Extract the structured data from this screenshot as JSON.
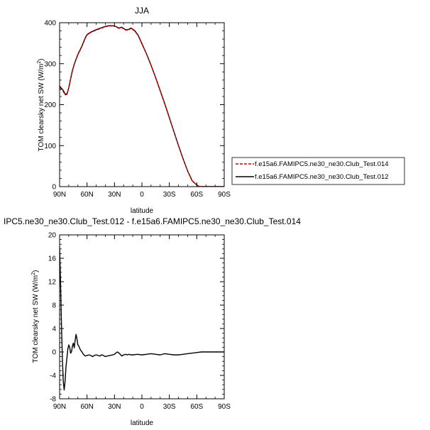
{
  "chart_data": [
    {
      "type": "line",
      "title": "JJA",
      "xlabel": "latitude",
      "ylabel": "TOM clearsky net SW (W/m",
      "ylabel_sup": "2",
      "ylabel_close": ")",
      "xlim": [
        90,
        -90
      ],
      "ylim": [
        0,
        400
      ],
      "xticks": [
        90,
        60,
        30,
        0,
        -30,
        -60,
        -90
      ],
      "xtick_labels": [
        "90N",
        "60N",
        "30N",
        "0",
        "30S",
        "60S",
        "90S"
      ],
      "yticks": [
        0,
        100,
        200,
        300,
        400
      ],
      "ytick_labels": [
        "0",
        "100",
        "200",
        "300",
        "400"
      ],
      "grid": false,
      "legend": "right",
      "series": [
        {
          "name": "f.e15a6.FAMIPC5.ne30_ne30.Club_Test.014",
          "color": "#cc0000",
          "dash": "dashed",
          "x": [
            90,
            88,
            86,
            84,
            82,
            80,
            78,
            76,
            74,
            72,
            70,
            66,
            62,
            60,
            56,
            50,
            45,
            40,
            35,
            30,
            25,
            22,
            18,
            15,
            12,
            8,
            4,
            0,
            -5,
            -10,
            -15,
            -20,
            -25,
            -30,
            -35,
            -40,
            -45,
            -50,
            -55,
            -60,
            -62,
            -64,
            -66,
            -68,
            -70,
            -75,
            -80,
            -85,
            -90
          ],
          "y": [
            236,
            238,
            232,
            224,
            225,
            240,
            262,
            282,
            298,
            310,
            322,
            340,
            362,
            370,
            376,
            382,
            386,
            390,
            392,
            392,
            386,
            388,
            382,
            382,
            386,
            380,
            368,
            348,
            324,
            296,
            266,
            234,
            202,
            168,
            134,
            100,
            68,
            38,
            14,
            4,
            1,
            0,
            0,
            0,
            0,
            0,
            0,
            0,
            0
          ]
        },
        {
          "name": "f.e15a6.FAMIPC5.ne30_ne30.Club_Test.012",
          "color": "#000000",
          "dash": "solid",
          "x": [
            90,
            88,
            86,
            84,
            82,
            80,
            78,
            76,
            74,
            72,
            70,
            66,
            62,
            60,
            56,
            50,
            45,
            40,
            35,
            30,
            25,
            22,
            18,
            15,
            12,
            8,
            4,
            0,
            -5,
            -10,
            -15,
            -20,
            -25,
            -30,
            -35,
            -40,
            -45,
            -50,
            -55,
            -60,
            -62,
            -64,
            -66,
            -68,
            -70,
            -75,
            -80,
            -85,
            -90
          ],
          "y": [
            245,
            240,
            235,
            226,
            226,
            241,
            263,
            283,
            299,
            311,
            323,
            341,
            363,
            371,
            377,
            383,
            387,
            391,
            393,
            392,
            387,
            389,
            383,
            383,
            387,
            381,
            369,
            349,
            324,
            296,
            266,
            234,
            202,
            168,
            134,
            100,
            68,
            38,
            14,
            4,
            1,
            0,
            0,
            0,
            0,
            0,
            0,
            0,
            0
          ]
        }
      ]
    },
    {
      "type": "line",
      "title": "IPC5.ne30_ne30.Club_Test.012 - f.e15a6.FAMIPC5.ne30_ne30.Club_Test.014",
      "xlabel": "latitude",
      "ylabel": "TOM clearsky net SW (W/m",
      "ylabel_sup": "2",
      "ylabel_close": ")",
      "xlim": [
        90,
        -90
      ],
      "ylim": [
        -8,
        20
      ],
      "xticks": [
        90,
        60,
        30,
        0,
        -30,
        -60,
        -90
      ],
      "xtick_labels": [
        "90N",
        "60N",
        "30N",
        "0",
        "30S",
        "60S",
        "90S"
      ],
      "yticks": [
        -8,
        -4,
        0,
        4,
        8,
        12,
        16,
        20
      ],
      "ytick_labels": [
        "-8",
        "-4",
        "0",
        "4",
        "8",
        "12",
        "16",
        "20"
      ],
      "grid": false,
      "legend": "none",
      "series": [
        {
          "color": "#000000",
          "dash": "solid",
          "x": [
            90,
            89,
            88,
            87,
            86,
            85,
            84,
            83,
            82,
            81,
            80,
            79,
            78,
            77,
            76,
            75,
            74,
            73,
            72,
            71,
            70,
            69,
            68,
            67,
            66,
            64,
            62,
            60,
            58,
            56,
            54,
            52,
            50,
            48,
            46,
            44,
            42,
            40,
            38,
            35,
            32,
            30,
            27,
            25,
            22,
            20,
            18,
            16,
            14,
            12,
            10,
            5,
            0,
            -5,
            -10,
            -15,
            -20,
            -25,
            -30,
            -35,
            -40,
            -45,
            -50,
            -55,
            -60,
            -65,
            -70,
            -75,
            -80,
            -85,
            -90
          ],
          "y": [
            18,
            12,
            5,
            -1,
            -5,
            -6.5,
            -5,
            -2.5,
            -1,
            0.5,
            1.2,
            0.8,
            -0.2,
            0,
            1,
            1.5,
            0.7,
            2,
            3,
            2.2,
            1.2,
            1,
            0.6,
            0.3,
            0.1,
            -0.4,
            -0.7,
            -0.6,
            -0.5,
            -0.6,
            -0.8,
            -0.6,
            -0.5,
            -0.6,
            -0.7,
            -0.5,
            -0.6,
            -0.8,
            -0.7,
            -0.6,
            -0.5,
            -0.4,
            0,
            -0.2,
            -0.7,
            -0.5,
            -0.4,
            -0.5,
            -0.4,
            -0.5,
            -0.5,
            -0.4,
            -0.5,
            -0.4,
            -0.3,
            -0.4,
            -0.5,
            -0.3,
            -0.4,
            -0.5,
            -0.5,
            -0.4,
            -0.3,
            -0.2,
            -0.1,
            0,
            0,
            0,
            0,
            0,
            0
          ]
        }
      ]
    }
  ]
}
